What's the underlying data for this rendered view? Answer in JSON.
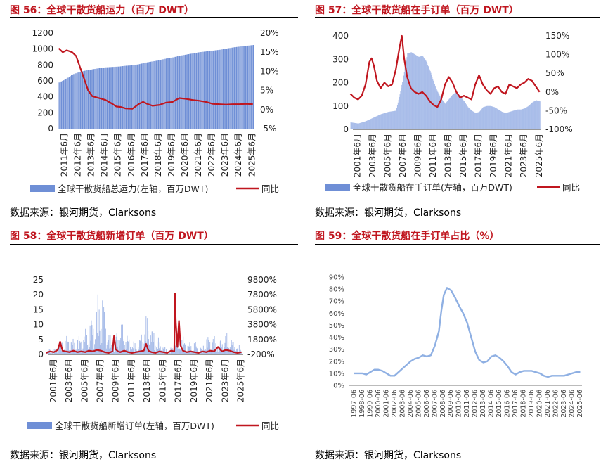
{
  "panels": {
    "p56": {
      "title": "图 56：全球干散货船运力（百万 DWT）",
      "source": "数据来源：银河期货，Clarksons"
    },
    "p57": {
      "title": "图 57：全球干散货船在手订单（百万 DWT）",
      "source": "数据来源：银河期货，Clarksons"
    },
    "p58": {
      "title": "图 58：全球干散货船新增订单（百万 DWT）",
      "source": "数据来源：银河期货，Clarksons"
    },
    "p59": {
      "title": "图 59：全球干散货船在手订单占比（%）",
      "source": "数据来源：银河期货，Clarksons"
    }
  },
  "colors": {
    "bar": "#6f8fd6",
    "bar_light": "#a9bde9",
    "line": "#c0161f",
    "line59": "#8fb0e3",
    "title": "#c0161f"
  },
  "chart_data": [
    {
      "id": "c56",
      "type": "bar",
      "combo": "bar+line",
      "x_labels": [
        "2011年6月",
        "2012年6月",
        "2013年6月",
        "2014年6月",
        "2015年6月",
        "2016年6月",
        "2017年6月",
        "2018年6月",
        "2019年6月",
        "2020年6月",
        "2021年6月",
        "2022年6月",
        "2023年6月",
        "2024年6月",
        "2025年6月"
      ],
      "left_axis": {
        "ticks": [
          "0",
          "200",
          "400",
          "600",
          "800",
          "1000",
          "1200"
        ],
        "ylim": [
          0,
          1200
        ]
      },
      "right_axis": {
        "ticks": [
          "-5%",
          "0%",
          "5%",
          "10%",
          "15%",
          "20%"
        ],
        "ylim": [
          -5,
          20
        ]
      },
      "legend": [
        "全球干散货船总运力(左轴，百万DWT)",
        "同比"
      ],
      "series": [
        {
          "name": "全球干散货船总运力(左轴，百万DWT)",
          "axis": "left",
          "x": [
            2011.0,
            2011.5,
            2012.0,
            2012.5,
            2013.0,
            2013.5,
            2014.0,
            2014.5,
            2015.0,
            2015.5,
            2016.0,
            2016.5,
            2017.0,
            2017.5,
            2018.0,
            2018.5,
            2019.0,
            2019.5,
            2020.0,
            2020.5,
            2021.0,
            2021.5,
            2022.0,
            2022.5,
            2023.0,
            2023.5,
            2024.0,
            2024.5,
            2025.0,
            2025.5
          ],
          "values": [
            580,
            620,
            680,
            710,
            730,
            745,
            760,
            770,
            775,
            780,
            790,
            795,
            810,
            830,
            845,
            860,
            880,
            895,
            915,
            930,
            945,
            960,
            970,
            980,
            990,
            1005,
            1020,
            1030,
            1040,
            1050
          ]
        },
        {
          "name": "同比",
          "axis": "right",
          "x": [
            2011.0,
            2011.3,
            2011.6,
            2012.0,
            2012.3,
            2012.6,
            2012.9,
            2013.2,
            2013.5,
            2014.0,
            2014.5,
            2015.0,
            2015.3,
            2015.6,
            2016.0,
            2016.5,
            2017.0,
            2017.3,
            2017.6,
            2018.0,
            2018.5,
            2019.0,
            2019.5,
            2020.0,
            2020.5,
            2021.0,
            2021.5,
            2022.0,
            2022.5,
            2023.0,
            2023.5,
            2024.0,
            2024.5,
            2025.0,
            2025.5
          ],
          "values": [
            16,
            15,
            15.5,
            15,
            14,
            11,
            8,
            5,
            3.5,
            3,
            2.5,
            1.5,
            0.8,
            0.7,
            0.3,
            0.2,
            1.5,
            2.0,
            1.5,
            1.0,
            1.2,
            1.8,
            2.0,
            3.0,
            2.8,
            2.5,
            2.3,
            2.0,
            1.5,
            1.4,
            1.3,
            1.4,
            1.4,
            1.5,
            1.4
          ]
        }
      ]
    },
    {
      "id": "c57",
      "type": "area",
      "combo": "bar+line",
      "x_labels": [
        "2001年6月",
        "2003年6月",
        "2005年6月",
        "2007年6月",
        "2009年6月",
        "2011年6月",
        "2013年6月",
        "2015年6月",
        "2017年6月",
        "2019年6月",
        "2021年6月",
        "2023年6月",
        "2025年6月"
      ],
      "left_axis": {
        "ticks": [
          "0",
          "100",
          "200",
          "300",
          "400"
        ],
        "ylim": [
          0,
          400
        ]
      },
      "right_axis": {
        "ticks": [
          "-100%",
          "-50%",
          "0%",
          "50%",
          "100%",
          "150%"
        ],
        "ylim": [
          -100,
          150
        ]
      },
      "legend": [
        "全球干散货船在手订单(左轴，百万DWT)",
        "同比"
      ],
      "series": [
        {
          "name": "全球干散货船在手订单(左轴，百万DWT)",
          "axis": "left",
          "x": [
            2000.5,
            2001.5,
            2002.5,
            2003.5,
            2004.5,
            2005.5,
            2006.5,
            2007.0,
            2007.5,
            2008.0,
            2008.5,
            2009.0,
            2009.5,
            2010.0,
            2010.5,
            2011.0,
            2011.5,
            2012.0,
            2012.5,
            2013.0,
            2013.5,
            2014.0,
            2014.5,
            2015.0,
            2015.5,
            2016.0,
            2016.5,
            2017.0,
            2017.5,
            2018.0,
            2018.5,
            2019.0,
            2019.5,
            2020.0,
            2020.5,
            2021.0,
            2021.5,
            2022.0,
            2022.5,
            2023.0,
            2023.5,
            2024.0,
            2024.5,
            2025.0,
            2025.5
          ],
          "values": [
            30,
            25,
            35,
            50,
            65,
            75,
            80,
            150,
            230,
            325,
            330,
            320,
            310,
            315,
            290,
            250,
            200,
            160,
            130,
            110,
            130,
            150,
            160,
            140,
            120,
            95,
            80,
            70,
            75,
            95,
            100,
            100,
            95,
            85,
            75,
            70,
            75,
            80,
            85,
            85,
            90,
            100,
            115,
            125,
            120
          ]
        },
        {
          "name": "同比",
          "axis": "right",
          "x": [
            2000.5,
            2001.0,
            2001.5,
            2002.0,
            2002.5,
            2003.0,
            2003.3,
            2003.6,
            2004.0,
            2004.5,
            2005.0,
            2005.5,
            2006.0,
            2006.5,
            2007.0,
            2007.3,
            2007.6,
            2008.0,
            2008.5,
            2009.0,
            2009.5,
            2010.0,
            2010.5,
            2011.0,
            2011.5,
            2012.0,
            2012.5,
            2013.0,
            2013.5,
            2014.0,
            2014.5,
            2015.0,
            2015.5,
            2016.0,
            2016.5,
            2017.0,
            2017.5,
            2018.0,
            2018.5,
            2019.0,
            2019.5,
            2020.0,
            2020.5,
            2021.0,
            2021.5,
            2022.0,
            2022.5,
            2023.0,
            2023.5,
            2024.0,
            2024.5,
            2025.0,
            2025.5
          ],
          "values": [
            -5,
            -15,
            -20,
            -10,
            20,
            80,
            90,
            70,
            30,
            10,
            25,
            15,
            20,
            60,
            120,
            150,
            90,
            40,
            10,
            0,
            -5,
            0,
            -10,
            -25,
            -35,
            -40,
            -20,
            20,
            40,
            25,
            0,
            -15,
            -10,
            -15,
            -20,
            20,
            45,
            20,
            5,
            -5,
            10,
            15,
            0,
            -5,
            20,
            15,
            10,
            20,
            25,
            35,
            30,
            15,
            0
          ]
        }
      ]
    },
    {
      "id": "c58",
      "type": "bar",
      "combo": "bar+line",
      "x_labels": [
        "2001年6月",
        "2003年6月",
        "2005年6月",
        "2007年6月",
        "2009年6月",
        "2011年6月",
        "2013年6月",
        "2015年6月",
        "2017年6月",
        "2019年6月",
        "2021年6月",
        "2023年6月",
        "2025年6月"
      ],
      "left_axis": {
        "ticks": [
          "0",
          "5",
          "10",
          "15",
          "20",
          "25"
        ],
        "ylim": [
          0,
          25
        ]
      },
      "right_axis": {
        "ticks": [
          "-200%",
          "1800%",
          "3800%",
          "5800%",
          "7800%",
          "9800%"
        ],
        "ylim": [
          -200,
          9800
        ]
      },
      "legend": [
        "全球干散货船新增订单(左轴，百万DWT)",
        "同比"
      ],
      "series": [
        {
          "name": "全球干散货船新增订单(左轴，百万DWT)",
          "axis": "left",
          "x": [
            2000.5,
            2001.0,
            2001.5,
            2002.0,
            2002.5,
            2003.0,
            2003.5,
            2004.0,
            2004.5,
            2005.0,
            2005.5,
            2006.0,
            2006.5,
            2007.0,
            2007.3,
            2007.6,
            2008.0,
            2008.5,
            2009.0,
            2009.5,
            2010.0,
            2010.5,
            2011.0,
            2011.5,
            2012.0,
            2012.5,
            2013.0,
            2013.5,
            2014.0,
            2014.5,
            2015.0,
            2015.5,
            2016.0,
            2016.5,
            2017.0,
            2017.5,
            2018.0,
            2018.5,
            2019.0,
            2019.5,
            2020.0,
            2020.5,
            2021.0,
            2021.5,
            2022.0,
            2022.5,
            2023.0,
            2023.5,
            2024.0,
            2024.5,
            2025.0,
            2025.5
          ],
          "values": [
            1,
            2,
            1.5,
            3,
            4,
            5,
            6,
            4,
            5,
            6,
            7,
            9,
            12,
            15,
            20,
            18,
            14,
            6,
            4,
            7,
            9,
            8,
            5,
            4,
            3,
            5,
            9,
            12,
            8,
            6,
            4,
            3,
            1,
            2,
            4,
            6,
            5,
            4,
            3,
            4,
            2,
            3,
            5,
            6,
            5,
            4,
            5,
            6,
            5,
            4,
            3,
            2
          ]
        },
        {
          "name": "同比",
          "axis": "right",
          "x": [
            2000.5,
            2001.0,
            2001.5,
            2002.0,
            2002.3,
            2002.6,
            2003.0,
            2003.5,
            2004.0,
            2004.5,
            2005.0,
            2005.5,
            2006.0,
            2006.5,
            2007.0,
            2007.5,
            2008.0,
            2008.5,
            2009.0,
            2009.2,
            2009.4,
            2009.7,
            2010.0,
            2010.5,
            2011.0,
            2011.5,
            2012.0,
            2012.5,
            2013.0,
            2013.3,
            2013.6,
            2014.0,
            2014.5,
            2015.0,
            2015.5,
            2016.0,
            2016.5,
            2016.9,
            2017.0,
            2017.1,
            2017.3,
            2017.5,
            2017.7,
            2018.0,
            2018.5,
            2019.0,
            2019.5,
            2020.0,
            2020.5,
            2021.0,
            2021.5,
            2022.0,
            2022.5,
            2023.0,
            2023.5,
            2024.0,
            2024.5,
            2025.0,
            2025.5
          ],
          "values": [
            0,
            200,
            100,
            400,
            1500,
            300,
            200,
            100,
            300,
            100,
            200,
            100,
            300,
            200,
            400,
            300,
            100,
            0,
            200,
            2300,
            500,
            200,
            100,
            300,
            100,
            0,
            100,
            200,
            300,
            1200,
            300,
            100,
            0,
            200,
            100,
            0,
            300,
            200,
            8000,
            4000,
            800,
            4300,
            1000,
            300,
            100,
            200,
            100,
            0,
            200,
            100,
            300,
            200,
            800,
            200,
            400,
            300,
            100,
            0,
            100
          ]
        }
      ]
    },
    {
      "id": "c59",
      "type": "line",
      "x_labels": [
        "1997-06",
        "1998-06",
        "1999-06",
        "2000-06",
        "2001-06",
        "2002-06",
        "2003-06",
        "2004-06",
        "2005-06",
        "2006-06",
        "2007-06",
        "2008-06",
        "2009-06",
        "2010-06",
        "2011-06",
        "2012-06",
        "2013-06",
        "2014-06",
        "2015-06",
        "2016-06",
        "2017-06",
        "2018-06",
        "2019-06",
        "2020-06",
        "2021-06",
        "2022-06",
        "2023-06",
        "2024-06",
        "2025-06"
      ],
      "y_axis": {
        "ticks": [
          "0%",
          "10%",
          "20%",
          "30%",
          "40%",
          "50%",
          "60%",
          "70%",
          "80%",
          "90%"
        ],
        "ylim": [
          0,
          90
        ]
      },
      "series": [
        {
          "name": "",
          "x": [
            1997.5,
            1998.0,
            1998.5,
            1999.0,
            1999.5,
            2000.0,
            2000.5,
            2001.0,
            2001.5,
            2002.0,
            2002.5,
            2003.0,
            2003.5,
            2004.0,
            2004.5,
            2005.0,
            2005.5,
            2006.0,
            2006.5,
            2007.0,
            2007.5,
            2008.0,
            2008.3,
            2008.6,
            2009.0,
            2009.5,
            2010.0,
            2010.5,
            2011.0,
            2011.5,
            2012.0,
            2012.5,
            2013.0,
            2013.5,
            2014.0,
            2014.5,
            2015.0,
            2015.5,
            2016.0,
            2016.5,
            2017.0,
            2017.5,
            2018.0,
            2018.5,
            2019.0,
            2019.5,
            2020.0,
            2020.5,
            2021.0,
            2021.5,
            2022.0,
            2022.5,
            2023.0,
            2023.5,
            2024.0,
            2024.5,
            2025.0,
            2025.5
          ],
          "values": [
            10,
            10,
            10,
            9,
            11,
            13,
            13,
            12,
            10,
            8,
            8,
            11,
            14,
            17,
            20,
            22,
            23,
            25,
            24,
            25,
            33,
            45,
            62,
            75,
            81,
            79,
            73,
            66,
            60,
            52,
            40,
            28,
            21,
            19,
            20,
            24,
            25,
            23,
            20,
            16,
            11,
            9,
            11,
            12,
            12,
            12,
            11,
            10,
            8,
            7,
            8,
            8,
            8,
            8,
            9,
            10,
            11,
            11
          ]
        }
      ]
    }
  ]
}
